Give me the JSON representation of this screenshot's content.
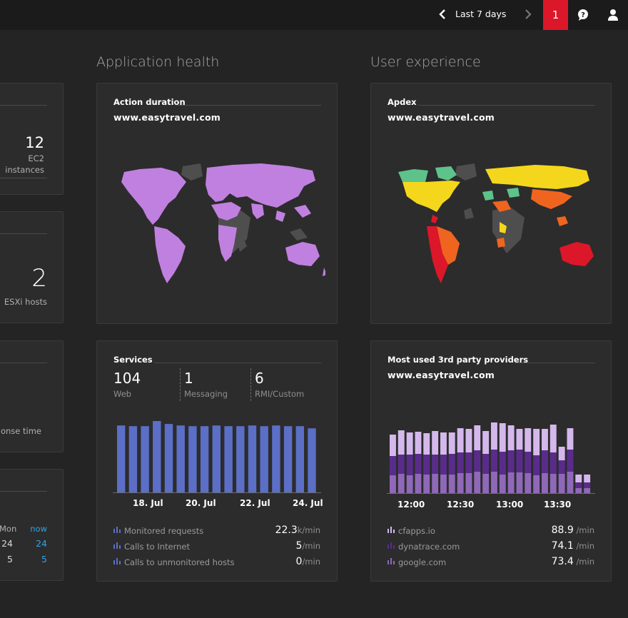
{
  "topbar": {
    "range_label": "Last 7 days",
    "alert_count": "1",
    "icons": [
      "chevron-left-icon",
      "chevron-right-icon",
      "help-chat-icon",
      "user-icon"
    ],
    "alert_color": "#dc172a"
  },
  "infrastructure": {
    "ec2": {
      "count": "12",
      "label_line1": "EC2",
      "label_line2": "instances"
    },
    "esxi": {
      "count": "2",
      "label": "ESXi hosts"
    },
    "response": {
      "label": "onse time"
    },
    "calendar": {
      "mon": "Mon",
      "now": "now",
      "row1_mon": "24",
      "row1_now": "24",
      "row2_mon": "5",
      "row2_now": "5"
    }
  },
  "app_health": {
    "section_title": "Application health",
    "action_card": {
      "title": "Action duration",
      "subtitle": "www.easytravel.com"
    },
    "services_card": {
      "title": "Services",
      "stats": [
        {
          "value": "104",
          "label": "Web"
        },
        {
          "value": "1",
          "label": "Messaging"
        },
        {
          "value": "6",
          "label": "RMI/Custom"
        }
      ],
      "metrics": [
        {
          "label": "Monitored requests",
          "value": "22.3",
          "unit": "k/min"
        },
        {
          "label": "Calls to Internet",
          "value": "5",
          "unit": "/min"
        },
        {
          "label": "Calls to unmonitored hosts",
          "value": "0",
          "unit": "/min"
        }
      ]
    }
  },
  "user_experience": {
    "section_title": "User experience",
    "apdex_card": {
      "title": "Apdex",
      "subtitle": "www.easytravel.com"
    },
    "providers_card": {
      "title": "Most used 3rd party providers",
      "subtitle": "www.easytravel.com",
      "metrics": [
        {
          "label": "cfapps.io",
          "value": "88.9",
          "unit": "/min"
        },
        {
          "label": "dynatrace.com",
          "value": "74.1",
          "unit": "/min"
        },
        {
          "label": "google.com",
          "value": "73.4",
          "unit": "/min"
        }
      ]
    }
  },
  "chart_data": [
    {
      "type": "bar",
      "categories": [
        "",
        "",
        "",
        "",
        "18. Jul",
        "",
        "",
        "",
        "20. Jul",
        "",
        "",
        "",
        "22. Jul",
        "",
        "",
        "",
        "24. Jul"
      ],
      "x_tick_labels": [
        "18. Jul",
        "20. Jul",
        "22. Jul",
        "24. Jul"
      ],
      "values": [
        92,
        91,
        91,
        98,
        94,
        92,
        91,
        91,
        92,
        91,
        91,
        92,
        91,
        92,
        91,
        91,
        88
      ],
      "ylim": [
        0,
        100
      ],
      "color": "#5b6fc7"
    },
    {
      "type": "bar",
      "stacked": true,
      "x_tick_labels": [
        "12:00",
        "12:30",
        "13:00",
        "13:30"
      ],
      "series": [
        {
          "values": [
            26,
            28,
            26,
            28,
            27,
            28,
            27,
            27,
            29,
            29,
            31,
            28,
            31,
            27,
            30,
            30,
            29,
            26,
            29,
            28,
            28,
            31,
            8,
            8
          ],
          "color": "#8f68b7"
        },
        {
          "values": [
            27,
            27,
            29,
            28,
            28,
            27,
            28,
            29,
            29,
            29,
            30,
            28,
            31,
            32,
            31,
            32,
            30,
            28,
            32,
            30,
            19,
            31,
            8,
            8
          ],
          "color": "#592c8c"
        },
        {
          "values": [
            30,
            34,
            31,
            31,
            30,
            33,
            31,
            30,
            34,
            33,
            35,
            32,
            38,
            40,
            35,
            29,
            33,
            37,
            30,
            39,
            19,
            30,
            11,
            11
          ],
          "color": "#d4b8ec"
        }
      ]
    }
  ],
  "colors": {
    "map_action": "#c080e0",
    "map_land_dark": "#4e4e4e",
    "apdex_yellow": "#f4d71c",
    "apdex_orange": "#ef651f",
    "apdex_red": "#dc172a",
    "apdex_green": "#5ec28b"
  }
}
